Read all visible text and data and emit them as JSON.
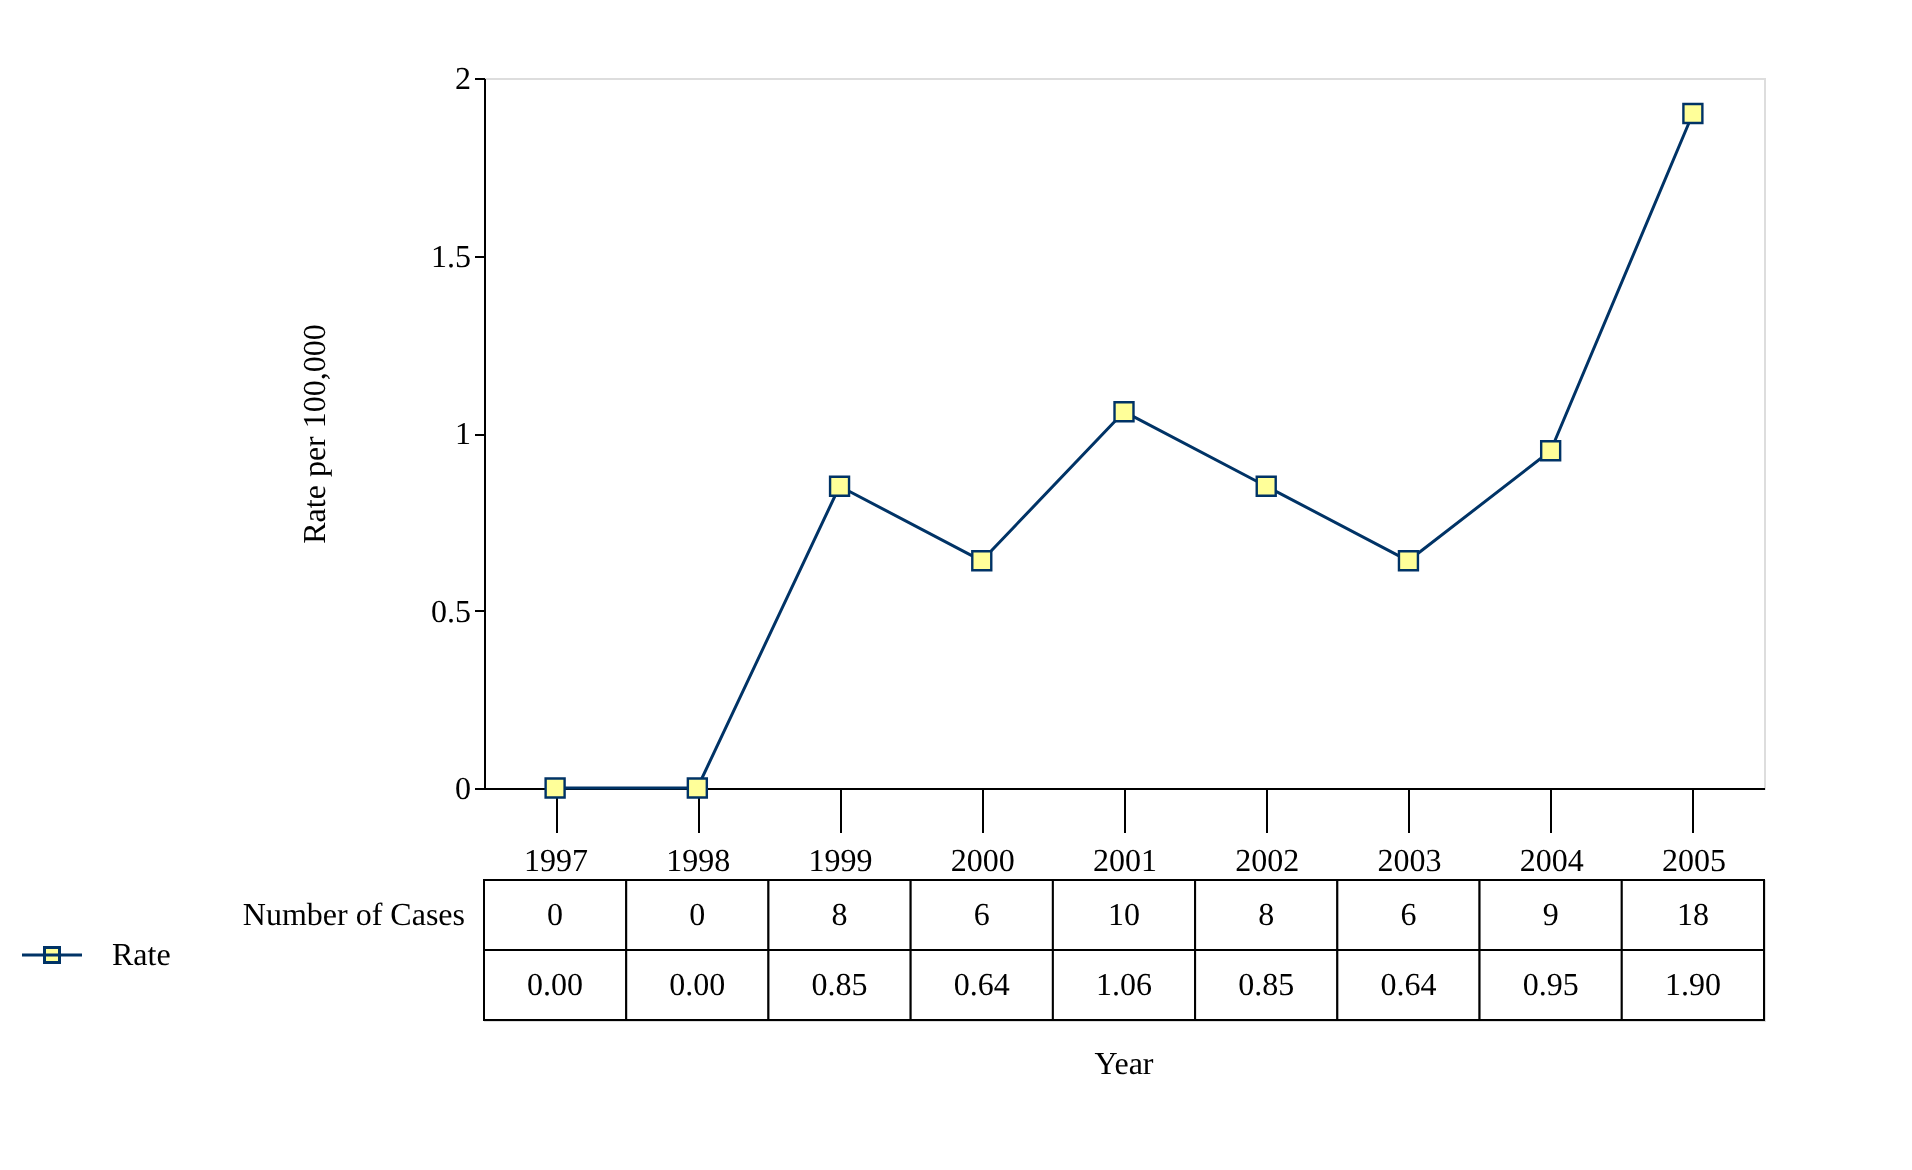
{
  "chart_data": {
    "type": "line",
    "ylabel": "Rate per 100,000",
    "categories": [
      "1997",
      "1998",
      "1999",
      "2000",
      "2001",
      "2002",
      "2003",
      "2004",
      "2005"
    ],
    "ylim": [
      0,
      2
    ],
    "yticks": [
      0,
      0.5,
      1,
      1.5,
      2
    ],
    "grid": false,
    "marker": "square",
    "line_style": "solid",
    "legend": "bottom left",
    "series": [
      {
        "name": "Rate",
        "color": "#003366",
        "values": [
          0,
          0,
          0.85,
          0.64,
          1.06,
          0.85,
          0.64,
          0.95,
          1.9
        ],
        "value_labels": [
          "0.00",
          "0.00",
          "0.85",
          "0.64",
          "1.06",
          "0.85",
          "0.64",
          "0.95",
          "1.90"
        ]
      }
    ],
    "annotations": [
      "Number of Cases",
      "0",
      "0",
      "8",
      "6",
      "10",
      "8",
      "6",
      "9",
      "18",
      "Year"
    ]
  }
}
